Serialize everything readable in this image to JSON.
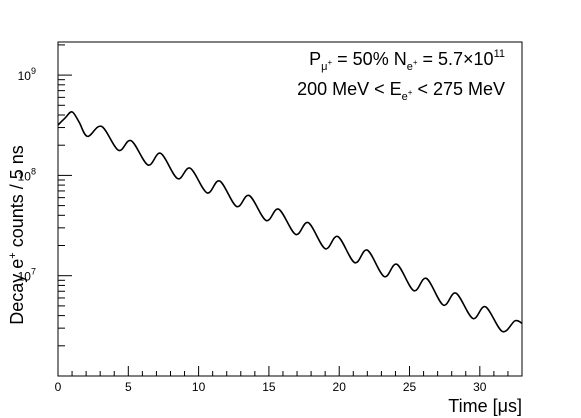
{
  "chart_data": {
    "type": "line",
    "x_label": "Time [μs]",
    "y_label_main": "Decay e",
    "y_label_sup": "+",
    "y_label_rest": " counts / 5 ns",
    "x_range": [
      0,
      33
    ],
    "y_range_log10": [
      6,
      9.33
    ],
    "y_scale": "log",
    "grid": false,
    "x_ticks": [
      {
        "value": 0,
        "label": "0"
      },
      {
        "value": 5,
        "label": "5"
      },
      {
        "value": 10,
        "label": "10"
      },
      {
        "value": 15,
        "label": "15"
      },
      {
        "value": 20,
        "label": "20"
      },
      {
        "value": 25,
        "label": "25"
      },
      {
        "value": 30,
        "label": "30"
      }
    ],
    "y_ticks": [
      {
        "exp": 7,
        "base": "10",
        "sup": "7"
      },
      {
        "exp": 8,
        "base": "10",
        "sup": "8"
      },
      {
        "exp": 9,
        "base": "10",
        "sup": "9"
      }
    ],
    "annotation_line1": {
      "p_main": "P",
      "p_sub": "μ",
      "p_subsup": "+",
      "p_rest": " = 50%  N",
      "n_sub": "e",
      "n_subsup": "+",
      "n_rest": " = 5.7×10",
      "n_sup": "11"
    },
    "annotation_line2": {
      "pre": "200 MeV < E",
      "e_sub": "e",
      "e_subsup": "+",
      "post": " < 275 MeV"
    },
    "series": [
      {
        "color": "#000000",
        "points": [
          [
            0.0,
            318000000.0
          ],
          [
            0.5,
            373000000.0
          ],
          [
            1.0,
            430000000.0
          ],
          [
            1.5,
            340000000.0
          ],
          [
            2.1,
            245000000.0
          ],
          [
            3.1,
            308000000.0
          ],
          [
            4.3,
            178000000.0
          ],
          [
            5.2,
            222000000.0
          ],
          [
            6.4,
            127000000.0
          ],
          [
            7.3,
            166000000.0
          ],
          [
            8.5,
            93000000.0
          ],
          [
            9.4,
            118000000.0
          ],
          [
            10.6,
            67000000.0
          ],
          [
            11.5,
            88000000.0
          ],
          [
            12.7,
            49000000.0
          ],
          [
            13.6,
            63000000.0
          ],
          [
            14.8,
            35500000.0
          ],
          [
            15.7,
            46000000.0
          ],
          [
            16.9,
            25800000.0
          ],
          [
            17.8,
            33800000.0
          ],
          [
            19.0,
            18600000.0
          ],
          [
            19.9,
            24600000.0
          ],
          [
            21.1,
            13500000.0
          ],
          [
            22.0,
            18000000.0
          ],
          [
            23.2,
            9800000.0
          ],
          [
            24.1,
            13000000.0
          ],
          [
            25.3,
            7100000.0
          ],
          [
            26.2,
            9400000.0
          ],
          [
            27.4,
            5100000.0
          ],
          [
            28.3,
            6700000.0
          ],
          [
            29.5,
            3750000.0
          ],
          [
            30.4,
            4900000.0
          ],
          [
            31.6,
            2780000.0
          ],
          [
            32.5,
            3550000.0
          ],
          [
            33.0,
            3350000.0
          ]
        ]
      }
    ]
  }
}
